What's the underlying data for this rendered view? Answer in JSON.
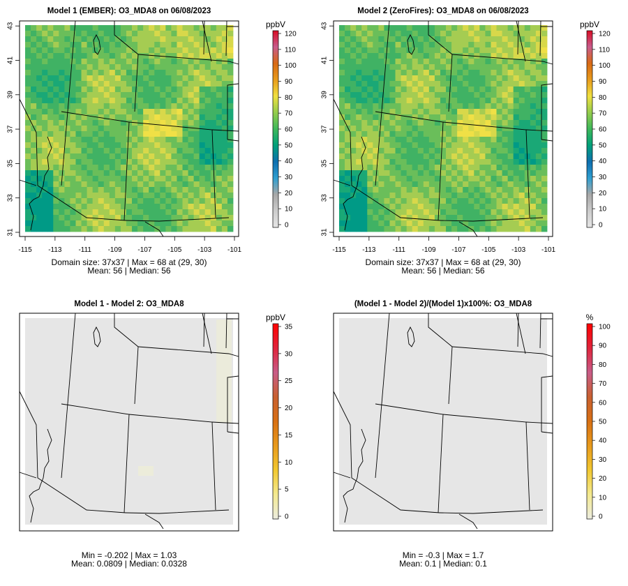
{
  "panels": [
    {
      "title": "Model 1 (EMBER): O3_MDA8 on 06/08/2023",
      "colorbar_unit": "ppbV",
      "colorbar_ticks": [
        "0",
        "10",
        "20",
        "30",
        "40",
        "50",
        "60",
        "70",
        "80",
        "90",
        "100",
        "110",
        "120"
      ],
      "stat_line1": "Domain size: 37x37 | Max = 68 at (29, 30)",
      "stat_line2": "Mean: 56 |  Median: 56",
      "x_ticks": [
        "-115",
        "-113",
        "-111",
        "-109",
        "-107",
        "-105",
        "-103",
        "-101"
      ],
      "y_ticks": [
        "31",
        "33",
        "35",
        "37",
        "39",
        "41",
        "43"
      ]
    },
    {
      "title": "Model 2 (ZeroFires): O3_MDA8 on 06/08/2023",
      "colorbar_unit": "ppbV",
      "colorbar_ticks": [
        "0",
        "10",
        "20",
        "30",
        "40",
        "50",
        "60",
        "70",
        "80",
        "90",
        "100",
        "110",
        "120"
      ],
      "stat_line1": "Domain size: 37x37 | Max = 68 at (29, 30)",
      "stat_line2": "Mean: 56 |  Median: 56",
      "x_ticks": [
        "-115",
        "-113",
        "-111",
        "-109",
        "-107",
        "-105",
        "-103",
        "-101"
      ],
      "y_ticks": [
        "31",
        "33",
        "35",
        "37",
        "39",
        "41",
        "43"
      ]
    },
    {
      "title": "Model 1 - Model 2: O3_MDA8",
      "colorbar_unit": "ppbV",
      "colorbar_ticks": [
        "0",
        "5",
        "10",
        "15",
        "20",
        "25",
        "30",
        "35"
      ],
      "stat_line1": "Min = -0.202 | Max = 1.03",
      "stat_line2": "Mean: 0.0809 |  Median: 0.0328"
    },
    {
      "title": "(Model 1 - Model 2)/(Model 1)x100%: O3_MDA8",
      "colorbar_unit": "%",
      "colorbar_ticks": [
        "0",
        "10",
        "20",
        "30",
        "40",
        "50",
        "60",
        "70",
        "80",
        "90",
        "100"
      ],
      "stat_line1": "Min = -0.3 | Max = 1.7",
      "stat_line2": "Mean: 0.1 |  Median: 0.1"
    }
  ],
  "colors": {
    "ozone_scale": [
      "#e6e6e6",
      "#c8c8c8",
      "#a0a0a0",
      "#3aa0c8",
      "#1f78b4",
      "#009c7a",
      "#3fae5a",
      "#8cc653",
      "#f0e040",
      "#e8a020",
      "#d86a10",
      "#cc5e88",
      "#d81030"
    ],
    "diff_scale": [
      "#eeeed8",
      "#f5e99a",
      "#f2cc3c",
      "#e8a020",
      "#dc7010",
      "#c8602a",
      "#cc5e88",
      "#e0204a",
      "#ff0000"
    ],
    "map_fill_low": "#e6e6e6",
    "outline": "#000000"
  }
}
